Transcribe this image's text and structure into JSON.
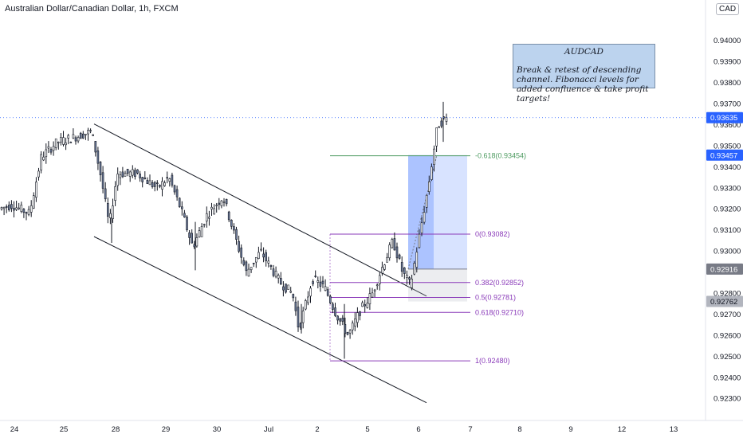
{
  "title": "Australian Dollar/Canadian Dollar, 1h, FXCM",
  "currency": "CAD",
  "note": {
    "heading": "AUDCAD",
    "body": "Break & retest of descending channel. Fibonacci levels for added confluence & take profit targets!"
  },
  "chart_data": {
    "type": "candlestick",
    "symbol": "AUDCAD",
    "timeframe": "1h",
    "x_ticks": [
      "24",
      "25",
      "28",
      "29",
      "30",
      "Jul",
      "2",
      "5",
      "6",
      "7",
      "8",
      "9",
      "12",
      "13"
    ],
    "y_ticks": [
      "0.94000",
      "0.93900",
      "0.93800",
      "0.93700",
      "0.93600",
      "0.93500",
      "0.93400",
      "0.93300",
      "0.93200",
      "0.93100",
      "0.93000",
      "0.92800",
      "0.92700",
      "0.92600",
      "0.92500",
      "0.92400",
      "0.92300"
    ],
    "ylim": [
      0.9222,
      0.9411
    ],
    "price_tags": [
      {
        "value": "0.93635",
        "color": "#2962ff",
        "kind": "last"
      },
      {
        "value": "0.93457",
        "color": "#2962ff",
        "kind": "target"
      },
      {
        "value": "0.92916",
        "color": "#787b86",
        "kind": "entry"
      },
      {
        "value": "0.92762",
        "color": "#b2b5be",
        "kind": "stop"
      }
    ],
    "fib_levels": [
      {
        "label": "-0.618(0.93454)",
        "value": 0.93454,
        "color": "#4c9a5f"
      },
      {
        "label": "0(0.93082)",
        "value": 0.93082,
        "color": "#8a3ab9"
      },
      {
        "label": "0.382(0.92852)",
        "value": 0.92852,
        "color": "#8a3ab9"
      },
      {
        "label": "0.5(0.92781)",
        "value": 0.92781,
        "color": "#8a3ab9"
      },
      {
        "label": "0.618(0.92710)",
        "value": 0.9271,
        "color": "#8a3ab9"
      },
      {
        "label": "1(0.92480)",
        "value": 0.9248,
        "color": "#8a3ab9"
      }
    ],
    "position": {
      "entry": 0.92916,
      "target": 0.93457,
      "stop": 0.92762
    },
    "channel": {
      "upper": [
        [
          0,
          0.93605
        ],
        [
          1,
          0.92795
        ]
      ],
      "lower": [
        [
          0,
          0.9307
        ],
        [
          1,
          0.92285
        ]
      ]
    },
    "colors": {
      "up": "#131722",
      "down": "#131722",
      "body_up": "#ffffff",
      "body_down": "#6b7a99"
    }
  }
}
